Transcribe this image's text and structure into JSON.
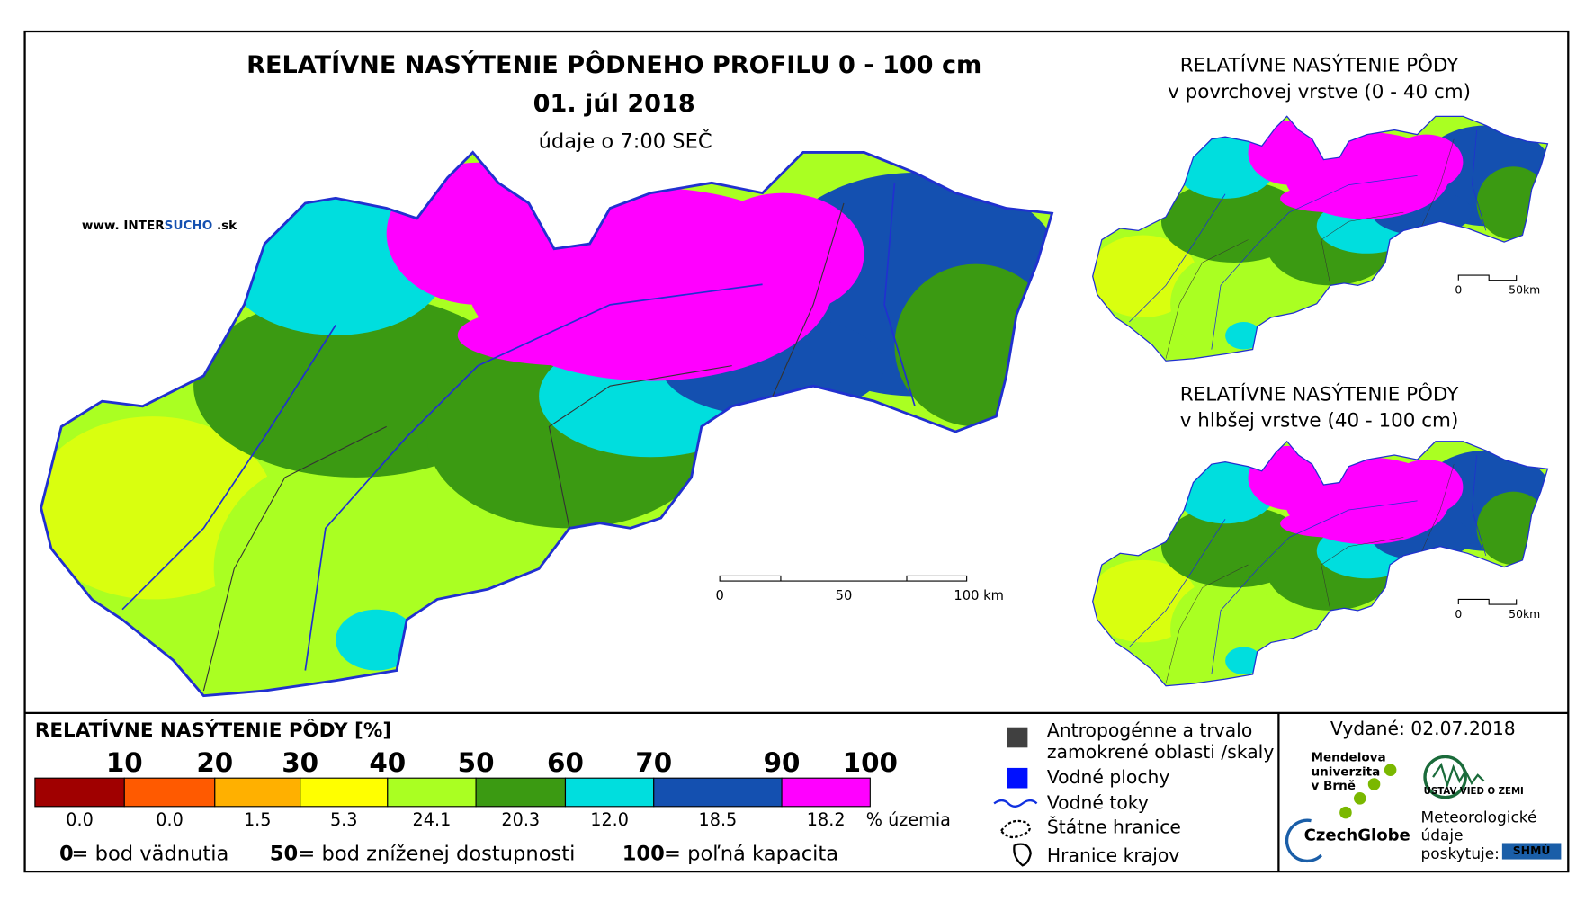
{
  "header": {
    "title": "RELATÍVNE NASÝTENIE PÔDNEHO PROFILU 0 - 100 cm",
    "date": "01. júl 2018",
    "time": "údaje o 7:00 SEČ",
    "site": [
      "www. INTER",
      "SUCHO",
      " .sk"
    ]
  },
  "main_scale": [
    "0",
    "50",
    "100 km"
  ],
  "insets": [
    {
      "title": "RELATÍVNE NASÝTENIE PÔDY",
      "subtitle": "v povrchovej vrstve (0 - 40 cm)",
      "scale": [
        "0",
        "50km"
      ]
    },
    {
      "title": "RELATÍVNE NASÝTENIE PÔDY",
      "subtitle": "v hlbšej vrstve (40 - 100 cm)",
      "scale": [
        "0",
        "50km"
      ]
    }
  ],
  "legend": {
    "title": "RELATÍVNE NASÝTENIE PÔDY [%]",
    "thresholds": [
      "10",
      "20",
      "30",
      "40",
      "50",
      "60",
      "70",
      "90",
      "100"
    ],
    "classes": [
      {
        "color": "#a00000",
        "share": "0.0"
      },
      {
        "color": "#ff5a00",
        "share": "0.0"
      },
      {
        "color": "#ffb000",
        "share": "1.5"
      },
      {
        "color": "#ffff00",
        "share": "5.3"
      },
      {
        "color": "#aaff22",
        "share": "24.1"
      },
      {
        "color": "#3b9a12",
        "share": "20.3"
      },
      {
        "color": "#00dede",
        "share": "12.0"
      },
      {
        "color": "#1450b0",
        "share": "18.5"
      },
      {
        "color": "#ff00ff",
        "share": "18.2"
      }
    ],
    "share_unit": "% územia",
    "notes": [
      {
        "key": "0",
        "text": "= bod vädnutia"
      },
      {
        "key": "50",
        "text": "= bod zníženej dostupnosti"
      },
      {
        "key": "100",
        "text": "= poľná kapacita"
      }
    ],
    "symbols": [
      "Antropogénne a trvalo",
      "zamokrené oblasti /skaly",
      "Vodné plochy",
      "Vodné toky",
      "Štátne hranice",
      "Hranice krajov"
    ]
  },
  "footer": {
    "issued": "Vydané: 02.07.2018",
    "mendel": [
      "Mendelova",
      "univerzita",
      "v Brně"
    ],
    "czechglobe": "CzechGlobe",
    "ustav": "ÚSTAV VIED O ZEMI",
    "provider": [
      "Meteorologické",
      "údaje",
      "poskytuje:"
    ],
    "shmu": "SHMÚ"
  }
}
